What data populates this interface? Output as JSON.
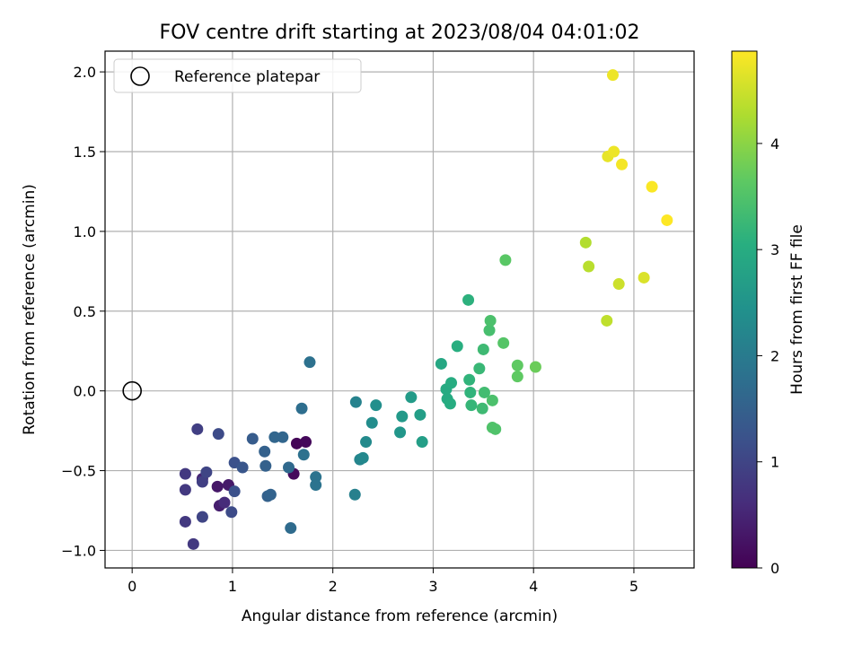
{
  "chart_data": {
    "type": "scatter",
    "title": "FOV centre drift starting at 2023/08/04 04:01:02",
    "xlabel": "Angular distance from reference (arcmin)",
    "ylabel": "Rotation from reference (arcmin)",
    "xlim": [
      -0.27,
      5.6
    ],
    "ylim": [
      -1.11,
      2.13
    ],
    "xticks": [
      0,
      1,
      2,
      3,
      4,
      5
    ],
    "yticks": [
      -1.0,
      -0.5,
      0.0,
      0.5,
      1.0,
      1.5,
      2.0
    ],
    "xtick_labels": [
      "0",
      "1",
      "2",
      "3",
      "4",
      "5"
    ],
    "ytick_labels": [
      "−1.0",
      "−0.5",
      "0.0",
      "0.5",
      "1.0",
      "1.5",
      "2.0"
    ],
    "grid": true,
    "legend_position": "top-left",
    "legend_entries": [
      "Reference platepar"
    ],
    "reference_point": {
      "x": 0,
      "y": 0
    },
    "colorbar": {
      "label": "Hours from first FF file",
      "range": [
        0,
        4.87
      ],
      "ticks": [
        0,
        1,
        2,
        3,
        4
      ],
      "tick_labels": [
        "0",
        "1",
        "2",
        "3",
        "4"
      ],
      "colormap": "viridis"
    },
    "points": [
      {
        "x": 1.64,
        "y": -0.33,
        "c": 0.05
      },
      {
        "x": 1.73,
        "y": -0.32,
        "c": 0.1
      },
      {
        "x": 1.61,
        "y": -0.52,
        "c": 0.12
      },
      {
        "x": 0.85,
        "y": -0.6,
        "c": 0.3
      },
      {
        "x": 0.96,
        "y": -0.59,
        "c": 0.35
      },
      {
        "x": 0.87,
        "y": -0.72,
        "c": 0.4
      },
      {
        "x": 0.7,
        "y": -0.55,
        "c": 0.5
      },
      {
        "x": 0.92,
        "y": -0.7,
        "c": 0.6
      },
      {
        "x": 0.53,
        "y": -0.52,
        "c": 0.8
      },
      {
        "x": 0.53,
        "y": -0.62,
        "c": 0.8
      },
      {
        "x": 0.53,
        "y": -0.82,
        "c": 0.8
      },
      {
        "x": 0.61,
        "y": -0.96,
        "c": 0.8
      },
      {
        "x": 0.65,
        "y": -0.24,
        "c": 0.9
      },
      {
        "x": 0.7,
        "y": -0.57,
        "c": 0.9
      },
      {
        "x": 0.74,
        "y": -0.51,
        "c": 1.0
      },
      {
        "x": 0.7,
        "y": -0.79,
        "c": 1.0
      },
      {
        "x": 0.86,
        "y": -0.27,
        "c": 1.1
      },
      {
        "x": 0.99,
        "y": -0.76,
        "c": 1.1
      },
      {
        "x": 1.02,
        "y": -0.45,
        "c": 1.2
      },
      {
        "x": 1.02,
        "y": -0.63,
        "c": 1.2
      },
      {
        "x": 1.1,
        "y": -0.48,
        "c": 1.3
      },
      {
        "x": 1.2,
        "y": -0.3,
        "c": 1.4
      },
      {
        "x": 1.32,
        "y": -0.38,
        "c": 1.5
      },
      {
        "x": 1.33,
        "y": -0.47,
        "c": 1.5
      },
      {
        "x": 1.35,
        "y": -0.66,
        "c": 1.5
      },
      {
        "x": 1.38,
        "y": -0.65,
        "c": 1.55
      },
      {
        "x": 1.42,
        "y": -0.29,
        "c": 1.6
      },
      {
        "x": 1.5,
        "y": -0.29,
        "c": 1.6
      },
      {
        "x": 1.56,
        "y": -0.48,
        "c": 1.65
      },
      {
        "x": 1.58,
        "y": -0.86,
        "c": 1.7
      },
      {
        "x": 1.69,
        "y": -0.11,
        "c": 1.75
      },
      {
        "x": 1.71,
        "y": -0.4,
        "c": 1.8
      },
      {
        "x": 1.77,
        "y": 0.18,
        "c": 1.8
      },
      {
        "x": 1.83,
        "y": -0.54,
        "c": 1.85
      },
      {
        "x": 1.83,
        "y": -0.59,
        "c": 1.85
      },
      {
        "x": 2.22,
        "y": -0.65,
        "c": 2.1
      },
      {
        "x": 2.23,
        "y": -0.07,
        "c": 2.15
      },
      {
        "x": 2.27,
        "y": -0.43,
        "c": 2.2
      },
      {
        "x": 2.3,
        "y": -0.42,
        "c": 2.25
      },
      {
        "x": 2.33,
        "y": -0.32,
        "c": 2.3
      },
      {
        "x": 2.39,
        "y": -0.2,
        "c": 2.35
      },
      {
        "x": 2.43,
        "y": -0.09,
        "c": 2.4
      },
      {
        "x": 2.67,
        "y": -0.26,
        "c": 2.55
      },
      {
        "x": 2.69,
        "y": -0.16,
        "c": 2.6
      },
      {
        "x": 2.78,
        "y": -0.04,
        "c": 2.65
      },
      {
        "x": 2.87,
        "y": -0.15,
        "c": 2.7
      },
      {
        "x": 2.89,
        "y": -0.32,
        "c": 2.7
      },
      {
        "x": 3.08,
        "y": 0.17,
        "c": 2.9
      },
      {
        "x": 3.13,
        "y": 0.01,
        "c": 2.95
      },
      {
        "x": 3.14,
        "y": -0.05,
        "c": 2.95
      },
      {
        "x": 3.17,
        "y": -0.08,
        "c": 3.0
      },
      {
        "x": 3.18,
        "y": 0.05,
        "c": 3.0
      },
      {
        "x": 3.24,
        "y": 0.28,
        "c": 3.05
      },
      {
        "x": 3.35,
        "y": 0.57,
        "c": 3.1
      },
      {
        "x": 3.36,
        "y": 0.07,
        "c": 3.15
      },
      {
        "x": 3.37,
        "y": -0.01,
        "c": 3.15
      },
      {
        "x": 3.38,
        "y": -0.09,
        "c": 3.2
      },
      {
        "x": 3.46,
        "y": 0.14,
        "c": 3.25
      },
      {
        "x": 3.49,
        "y": -0.11,
        "c": 3.3
      },
      {
        "x": 3.5,
        "y": 0.26,
        "c": 3.3
      },
      {
        "x": 3.51,
        "y": -0.01,
        "c": 3.35
      },
      {
        "x": 3.56,
        "y": 0.38,
        "c": 3.4
      },
      {
        "x": 3.57,
        "y": 0.44,
        "c": 3.45
      },
      {
        "x": 3.59,
        "y": -0.06,
        "c": 3.45
      },
      {
        "x": 3.59,
        "y": -0.23,
        "c": 3.5
      },
      {
        "x": 3.62,
        "y": -0.24,
        "c": 3.5
      },
      {
        "x": 3.7,
        "y": 0.3,
        "c": 3.55
      },
      {
        "x": 3.72,
        "y": 0.82,
        "c": 3.6
      },
      {
        "x": 3.84,
        "y": 0.16,
        "c": 3.65
      },
      {
        "x": 3.84,
        "y": 0.09,
        "c": 3.65
      },
      {
        "x": 4.02,
        "y": 0.15,
        "c": 3.75
      },
      {
        "x": 4.52,
        "y": 0.93,
        "c": 4.3
      },
      {
        "x": 4.55,
        "y": 0.78,
        "c": 4.35
      },
      {
        "x": 4.73,
        "y": 0.44,
        "c": 4.4
      },
      {
        "x": 4.74,
        "y": 1.47,
        "c": 4.7
      },
      {
        "x": 4.79,
        "y": 1.98,
        "c": 4.75
      },
      {
        "x": 4.8,
        "y": 1.5,
        "c": 4.75
      },
      {
        "x": 4.85,
        "y": 0.67,
        "c": 4.5
      },
      {
        "x": 4.88,
        "y": 1.42,
        "c": 4.8
      },
      {
        "x": 5.1,
        "y": 0.71,
        "c": 4.6
      },
      {
        "x": 5.18,
        "y": 1.28,
        "c": 4.85
      },
      {
        "x": 5.33,
        "y": 1.07,
        "c": 4.87
      }
    ]
  }
}
